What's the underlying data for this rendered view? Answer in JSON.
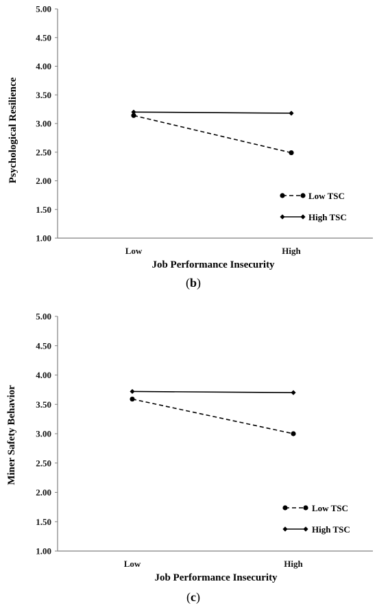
{
  "chart_data": [
    {
      "type": "line",
      "panel_label": "b",
      "categories": [
        "Low",
        "High"
      ],
      "xlabel": "Job Performance Insecurity",
      "ylabel": "Psychological Resilience",
      "ylim": [
        1.0,
        5.0
      ],
      "yticks": [
        "1.00",
        "1.50",
        "2.00",
        "2.50",
        "3.00",
        "3.50",
        "4.00",
        "4.50",
        "5.00"
      ],
      "grid": false,
      "legend_position": "bottom-right",
      "series": [
        {
          "name": "Low TSC",
          "values": [
            3.14,
            2.49
          ],
          "line_style": "dashed",
          "marker": "circle"
        },
        {
          "name": "High TSC",
          "values": [
            3.2,
            3.18
          ],
          "line_style": "solid",
          "marker": "diamond"
        }
      ]
    },
    {
      "type": "line",
      "panel_label": "c",
      "categories": [
        "Low",
        "High"
      ],
      "xlabel": "Job Performance Insecurity",
      "ylabel": "Miner Safety Behavior",
      "ylim": [
        1.0,
        5.0
      ],
      "yticks": [
        "1.00",
        "1.50",
        "2.00",
        "2.50",
        "3.00",
        "3.50",
        "4.00",
        "4.50",
        "5.00"
      ],
      "grid": false,
      "legend_position": "bottom-right",
      "series": [
        {
          "name": "Low TSC",
          "values": [
            3.59,
            3.0
          ],
          "line_style": "dashed",
          "marker": "circle"
        },
        {
          "name": "High TSC",
          "values": [
            3.72,
            3.7
          ],
          "line_style": "solid",
          "marker": "diamond"
        }
      ]
    }
  ]
}
